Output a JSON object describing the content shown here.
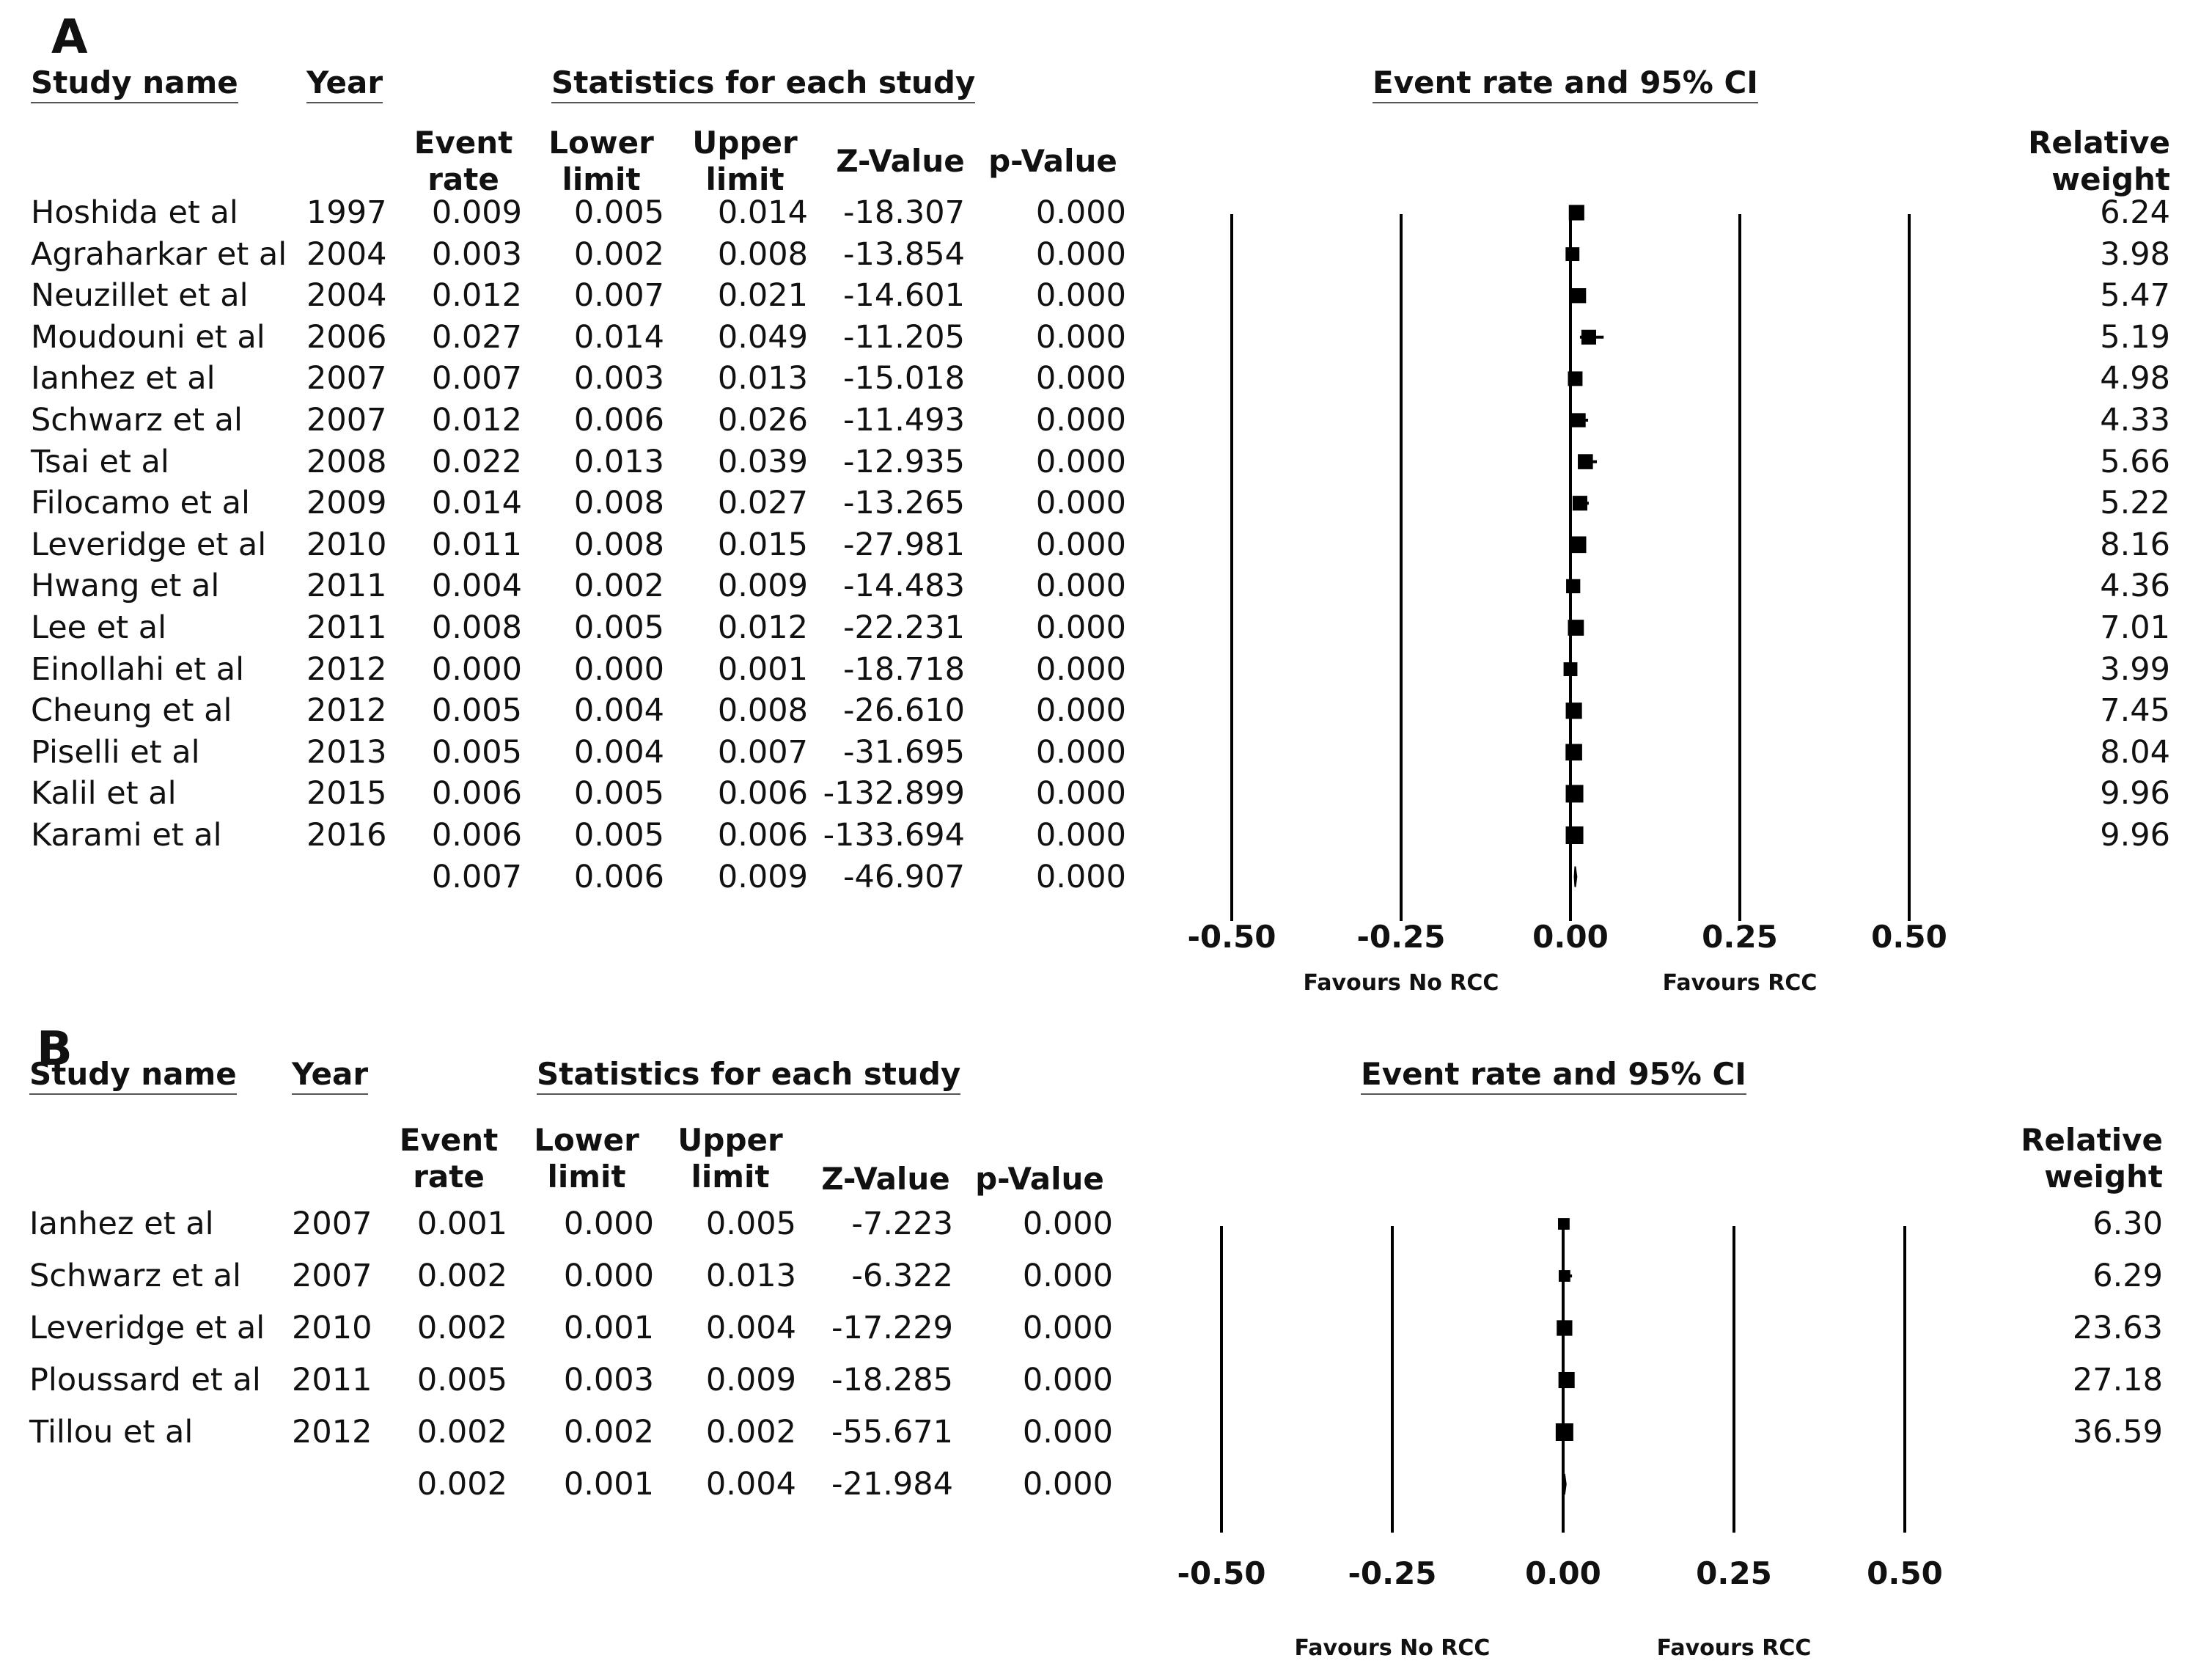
{
  "headers": {
    "study": "Study name",
    "year": "Year",
    "stats": "Statistics for each study",
    "ci": "Event rate and 95% CI",
    "event1": "Event",
    "event2": "rate",
    "lower1": "Lower",
    "lower2": "limit",
    "upper1": "Upper",
    "upper2": "limit",
    "z": "Z-Value",
    "p": "p-Value",
    "weight1": "Relative",
    "weight2": "weight"
  },
  "chart_data": [
    {
      "type": "forest",
      "panel": "A",
      "axis_ticks": [
        "-0.50",
        "-0.25",
        "0.00",
        "0.25",
        "0.50"
      ],
      "tick_values": [
        -0.5,
        -0.25,
        0,
        0.25,
        0.5
      ],
      "xlim": [
        -0.5,
        0.5
      ],
      "favours_left": "Favours No RCC",
      "favours_right": "Favours RCC",
      "studies": [
        {
          "name": "Hoshida et al",
          "year": "1997",
          "event_rate": "0.009",
          "lower": "0.005",
          "upper": "0.014",
          "z": "-18.307",
          "p": "0.000",
          "weight": "6.24"
        },
        {
          "name": "Agraharkar et al",
          "year": "2004",
          "event_rate": "0.003",
          "lower": "0.002",
          "upper": "0.008",
          "z": "-13.854",
          "p": "0.000",
          "weight": "3.98"
        },
        {
          "name": "Neuzillet et al",
          "year": "2004",
          "event_rate": "0.012",
          "lower": "0.007",
          "upper": "0.021",
          "z": "-14.601",
          "p": "0.000",
          "weight": "5.47"
        },
        {
          "name": "Moudouni et al",
          "year": "2006",
          "event_rate": "0.027",
          "lower": "0.014",
          "upper": "0.049",
          "z": "-11.205",
          "p": "0.000",
          "weight": "5.19"
        },
        {
          "name": "Ianhez et al",
          "year": "2007",
          "event_rate": "0.007",
          "lower": "0.003",
          "upper": "0.013",
          "z": "-15.018",
          "p": "0.000",
          "weight": "4.98"
        },
        {
          "name": "Schwarz et al",
          "year": "2007",
          "event_rate": "0.012",
          "lower": "0.006",
          "upper": "0.026",
          "z": "-11.493",
          "p": "0.000",
          "weight": "4.33"
        },
        {
          "name": "Tsai et al",
          "year": "2008",
          "event_rate": "0.022",
          "lower": "0.013",
          "upper": "0.039",
          "z": "-12.935",
          "p": "0.000",
          "weight": "5.66"
        },
        {
          "name": "Filocamo et al",
          "year": "2009",
          "event_rate": "0.014",
          "lower": "0.008",
          "upper": "0.027",
          "z": "-13.265",
          "p": "0.000",
          "weight": "5.22"
        },
        {
          "name": "Leveridge et al",
          "year": "2010",
          "event_rate": "0.011",
          "lower": "0.008",
          "upper": "0.015",
          "z": "-27.981",
          "p": "0.000",
          "weight": "8.16"
        },
        {
          "name": "Hwang et al",
          "year": "2011",
          "event_rate": "0.004",
          "lower": "0.002",
          "upper": "0.009",
          "z": "-14.483",
          "p": "0.000",
          "weight": "4.36"
        },
        {
          "name": "Lee et al",
          "year": "2011",
          "event_rate": "0.008",
          "lower": "0.005",
          "upper": "0.012",
          "z": "-22.231",
          "p": "0.000",
          "weight": "7.01"
        },
        {
          "name": "Einollahi et al",
          "year": "2012",
          "event_rate": "0.000",
          "lower": "0.000",
          "upper": "0.001",
          "z": "-18.718",
          "p": "0.000",
          "weight": "3.99"
        },
        {
          "name": "Cheung et al",
          "year": "2012",
          "event_rate": "0.005",
          "lower": "0.004",
          "upper": "0.008",
          "z": "-26.610",
          "p": "0.000",
          "weight": "7.45"
        },
        {
          "name": "Piselli et al",
          "year": "2013",
          "event_rate": "0.005",
          "lower": "0.004",
          "upper": "0.007",
          "z": "-31.695",
          "p": "0.000",
          "weight": "8.04"
        },
        {
          "name": "Kalil et al",
          "year": "2015",
          "event_rate": "0.006",
          "lower": "0.005",
          "upper": "0.006",
          "z": "-132.899",
          "p": "0.000",
          "weight": "9.96"
        },
        {
          "name": "Karami et al",
          "year": "2016",
          "event_rate": "0.006",
          "lower": "0.005",
          "upper": "0.006",
          "z": "-133.694",
          "p": "0.000",
          "weight": "9.96"
        }
      ],
      "pooled": {
        "event_rate": "0.007",
        "lower": "0.006",
        "upper": "0.009",
        "z": "-46.907",
        "p": "0.000"
      }
    },
    {
      "type": "forest",
      "panel": "B",
      "axis_ticks": [
        "-0.50",
        "-0.25",
        "0.00",
        "0.25",
        "0.50"
      ],
      "tick_values": [
        -0.5,
        -0.25,
        0,
        0.25,
        0.5
      ],
      "xlim": [
        -0.5,
        0.5
      ],
      "favours_left": "Favours No RCC",
      "favours_right": "Favours RCC",
      "studies": [
        {
          "name": "Ianhez et al",
          "year": "2007",
          "event_rate": "0.001",
          "lower": "0.000",
          "upper": "0.005",
          "z": "-7.223",
          "p": "0.000",
          "weight": "6.30"
        },
        {
          "name": "Schwarz et al",
          "year": "2007",
          "event_rate": "0.002",
          "lower": "0.000",
          "upper": "0.013",
          "z": "-6.322",
          "p": "0.000",
          "weight": "6.29"
        },
        {
          "name": "Leveridge et al",
          "year": "2010",
          "event_rate": "0.002",
          "lower": "0.001",
          "upper": "0.004",
          "z": "-17.229",
          "p": "0.000",
          "weight": "23.63"
        },
        {
          "name": "Ploussard et al",
          "year": "2011",
          "event_rate": "0.005",
          "lower": "0.003",
          "upper": "0.009",
          "z": "-18.285",
          "p": "0.000",
          "weight": "27.18"
        },
        {
          "name": "Tillou et al",
          "year": "2012",
          "event_rate": "0.002",
          "lower": "0.002",
          "upper": "0.002",
          "z": "-55.671",
          "p": "0.000",
          "weight": "36.59"
        }
      ],
      "pooled": {
        "event_rate": "0.002",
        "lower": "0.001",
        "upper": "0.004",
        "z": "-21.984",
        "p": "0.000"
      }
    }
  ]
}
